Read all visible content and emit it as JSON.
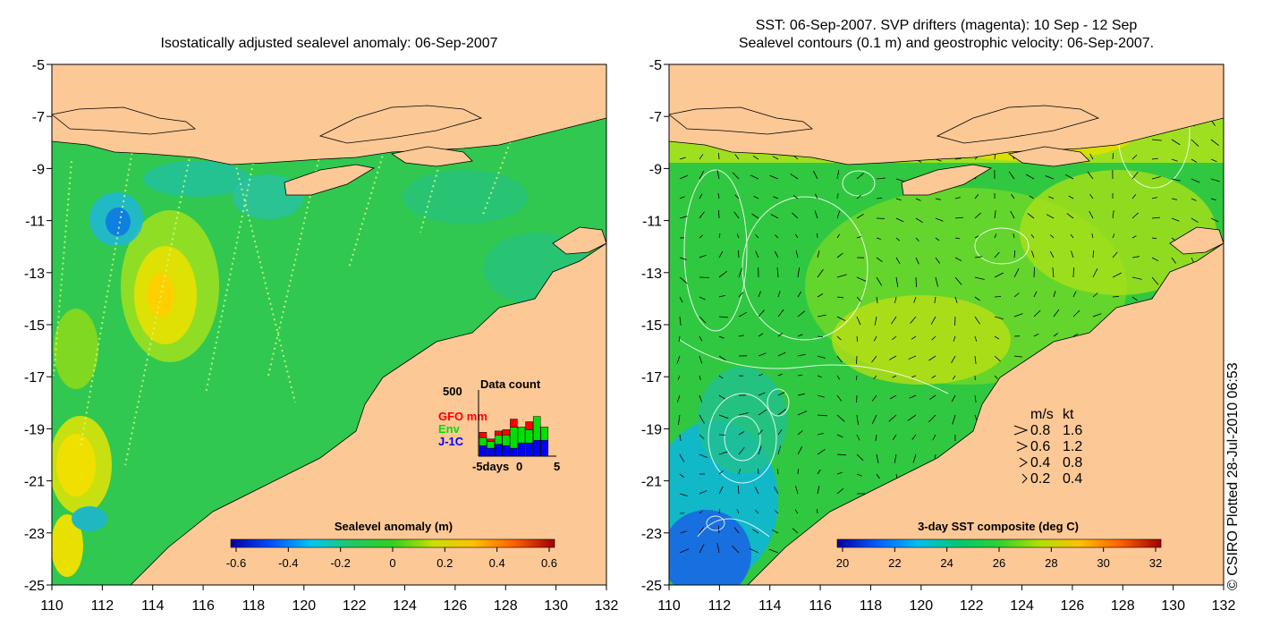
{
  "left_panel": {
    "title": "Isostatically adjusted sealevel anomaly: 06-Sep-2007",
    "colorbar_label": "Sealevel anomaly (m)",
    "colorbar_ticks": [
      "-0.6",
      "-0.4",
      "-0.2",
      "0",
      "0.2",
      "0.4",
      "0.6"
    ],
    "inset": {
      "title": "Data count",
      "y_max_label": "500",
      "legend": [
        {
          "label": "GFO mm",
          "color": "#ff0000"
        },
        {
          "label": "Env",
          "color": "#00e000"
        },
        {
          "label": "J-1C",
          "color": "#0000ff"
        }
      ],
      "x_labels": [
        "-5days",
        "0",
        "5"
      ],
      "bars": [
        {
          "day": -5,
          "jc": 80,
          "env": 60,
          "gfo": 40
        },
        {
          "day": -4,
          "jc": 60,
          "env": 50,
          "gfo": 20
        },
        {
          "day": -3,
          "jc": 90,
          "env": 70,
          "gfo": 30
        },
        {
          "day": -2,
          "jc": 80,
          "env": 80,
          "gfo": 40
        },
        {
          "day": -1,
          "jc": 60,
          "env": 160,
          "gfo": 60
        },
        {
          "day": 0,
          "jc": 100,
          "env": 120,
          "gfo": 0
        },
        {
          "day": 1,
          "jc": 100,
          "env": 100,
          "gfo": 60
        },
        {
          "day": 2,
          "jc": 120,
          "env": 180,
          "gfo": 0
        },
        {
          "day": 3,
          "jc": 120,
          "env": 100,
          "gfo": 0
        }
      ]
    }
  },
  "right_panel": {
    "title_line1": "SST: 06-Sep-2007. SVP drifters (magenta): 10 Sep - 12 Sep",
    "title_line2": "Sealevel contours (0.1 m) and geostrophic velocity: 06-Sep-2007.",
    "colorbar_label": "3-day SST composite (deg C)",
    "colorbar_ticks": [
      "20",
      "22",
      "24",
      "26",
      "28",
      "30",
      "32"
    ],
    "velocity_legend": {
      "header_ms": "m/s",
      "header_kt": "kt",
      "rows": [
        {
          "ms": "0.8",
          "kt": "1.6"
        },
        {
          "ms": "0.6",
          "kt": "1.2"
        },
        {
          "ms": "0.4",
          "kt": "0.8"
        },
        {
          "ms": "0.2",
          "kt": "0.4"
        }
      ]
    }
  },
  "axes": {
    "x_ticks": [
      "110",
      "112",
      "114",
      "116",
      "118",
      "120",
      "122",
      "124",
      "126",
      "128",
      "130",
      "132"
    ],
    "y_ticks": [
      "-5",
      "-7",
      "-9",
      "-11",
      "-13",
      "-15",
      "-17",
      "-19",
      "-21",
      "-23",
      "-25"
    ],
    "lon_range": [
      110,
      132
    ],
    "lat_range": [
      -25,
      -5
    ]
  },
  "credit": "© CSIRO Plotted 28-Jul-2010 06:53",
  "colors": {
    "land": "#fcc896",
    "sea_green": "#33cc33",
    "sla_colormap": [
      "#0000a0",
      "#0050ff",
      "#00c8f0",
      "#20c860",
      "#30d020",
      "#c8e000",
      "#ffc000",
      "#ff6000",
      "#a00000"
    ],
    "sst_colormap": [
      "#0000a0",
      "#0060ff",
      "#00c0f0",
      "#00c870",
      "#30d030",
      "#b0e000",
      "#ffc000",
      "#ff6000",
      "#a00000"
    ]
  }
}
